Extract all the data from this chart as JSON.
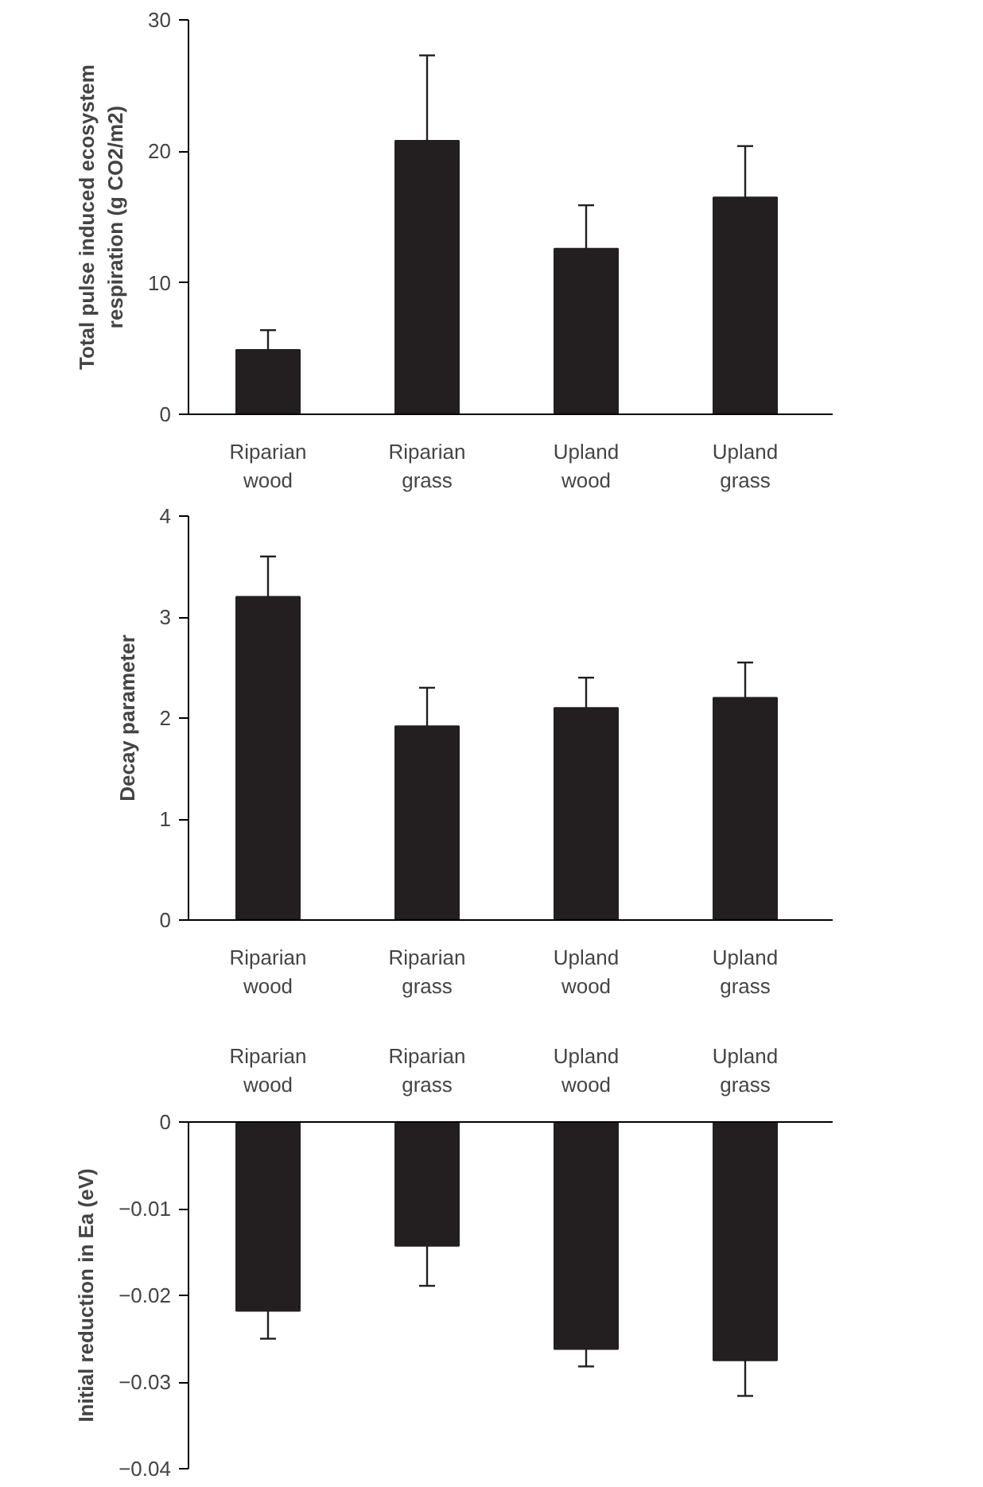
{
  "chart_data": [
    {
      "type": "bar",
      "categories": [
        "Riparian wood",
        "Riparian grass",
        "Upland wood",
        "Upland grass"
      ],
      "ylabel": "Total pulse induced ecosystem respiration (g CO2/m2)",
      "values": [
        4.9,
        20.8,
        12.6,
        16.5
      ],
      "color": "#231f20",
      "errors": [
        [
          4.9,
          6.4
        ],
        [
          20.8,
          27.3
        ],
        [
          12.6,
          15.9
        ],
        [
          16.5,
          20.4
        ]
      ],
      "ylim": [
        0,
        30
      ],
      "yticks": [
        0,
        10,
        20,
        30
      ],
      "grid": false
    },
    {
      "type": "bar",
      "categories": [
        "Riparian wood",
        "Riparian grass",
        "Upland wood",
        "Upland grass"
      ],
      "ylabel": "Decay parameter",
      "values": [
        3.2,
        1.92,
        2.1,
        2.2
      ],
      "color": "#231f20",
      "errors": [
        [
          3.2,
          3.6
        ],
        [
          1.92,
          2.3
        ],
        [
          2.1,
          2.4
        ],
        [
          2.2,
          2.55
        ]
      ],
      "ylim": [
        0,
        4
      ],
      "yticks": [
        0,
        1,
        2,
        3,
        4
      ],
      "grid": false
    },
    {
      "type": "bar",
      "categories": [
        "Riparian wood",
        "Riparian grass",
        "Upland wood",
        "Upland grass"
      ],
      "ylabel": "Initial reduction in Ea (eV)",
      "values": [
        -0.0218,
        -0.0143,
        -0.0262,
        -0.0275
      ],
      "color": "#231f20",
      "errors": [
        [
          -0.025,
          -0.0218
        ],
        [
          -0.0189,
          -0.0143
        ],
        [
          -0.0282,
          -0.0262
        ],
        [
          -0.0316,
          -0.0275
        ]
      ],
      "ylim": [
        -0.04,
        0
      ],
      "yticks": [
        0,
        {
          "value": -0.01,
          "label": "−0.01"
        },
        {
          "value": -0.02,
          "label": "−0.02"
        },
        {
          "value": -0.03,
          "label": "−0.03"
        },
        {
          "value": -0.04,
          "label": "−0.04"
        }
      ],
      "grid": false
    }
  ]
}
